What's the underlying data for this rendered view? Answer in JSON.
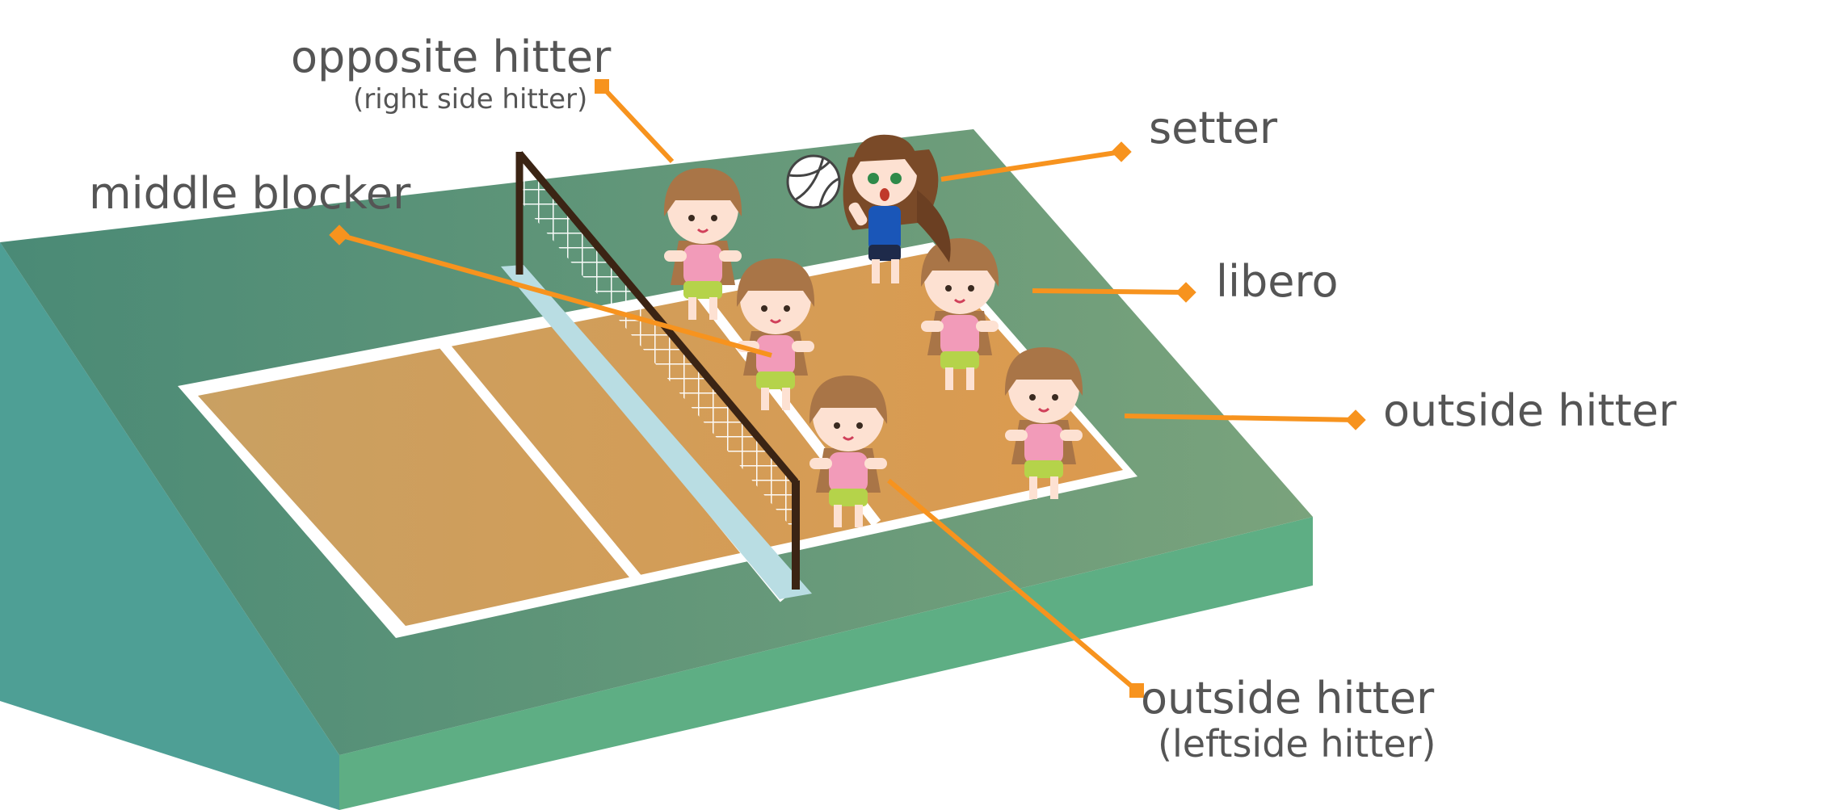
{
  "labels": {
    "opposite_hitter": "opposite hitter",
    "opposite_hitter_sub": "(right side hitter)",
    "middle_blocker": "middle blocker",
    "setter": "setter",
    "libero": "libero",
    "outside_hitter_right": "outside hitter",
    "outside_hitter_bottom": "outside hitter",
    "outside_hitter_bottom_sub": "(leftside hitter)"
  },
  "colors": {
    "leader": "#f7931e",
    "label_text": "#555555",
    "court_green": "#5a9b7e",
    "court_side": "#5aaa8a",
    "floor": "#cf9d5c",
    "court_lines": "#ffffff",
    "net_post": "#3b2414",
    "player_shirt": "#f29bb9",
    "player_hair": "#a97547",
    "setter_shirt": "#1a56b8"
  },
  "icons": [
    "volleyball-icon",
    "player-figure-icon",
    "setter-figure-icon",
    "net-icon"
  ]
}
